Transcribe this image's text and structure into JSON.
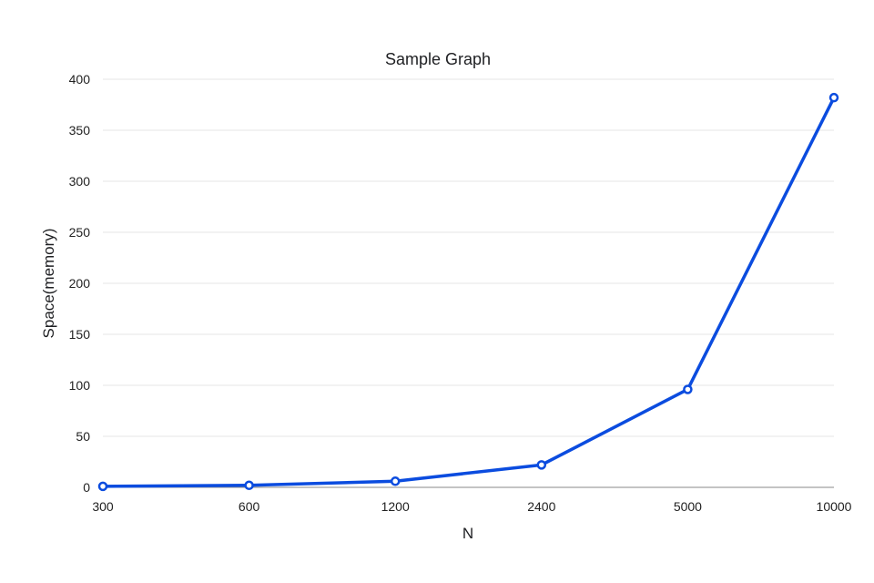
{
  "chart_data": {
    "type": "line",
    "title": "Sample Graph",
    "xlabel": "N",
    "ylabel": "Space(memory)",
    "categories": [
      "300",
      "600",
      "1200",
      "2400",
      "5000",
      "10000"
    ],
    "series": [
      {
        "values": [
          1,
          2,
          6,
          22,
          96,
          382
        ]
      }
    ],
    "ylim": [
      0,
      400
    ],
    "yticks": [
      0,
      50,
      100,
      150,
      200,
      250,
      300,
      350,
      400
    ],
    "grid": true,
    "legend": "none",
    "colors": {
      "line": "#0b4cdf",
      "marker_fill": "#ffffff",
      "grid": "#e6e6e6",
      "axis": "#888888"
    }
  }
}
